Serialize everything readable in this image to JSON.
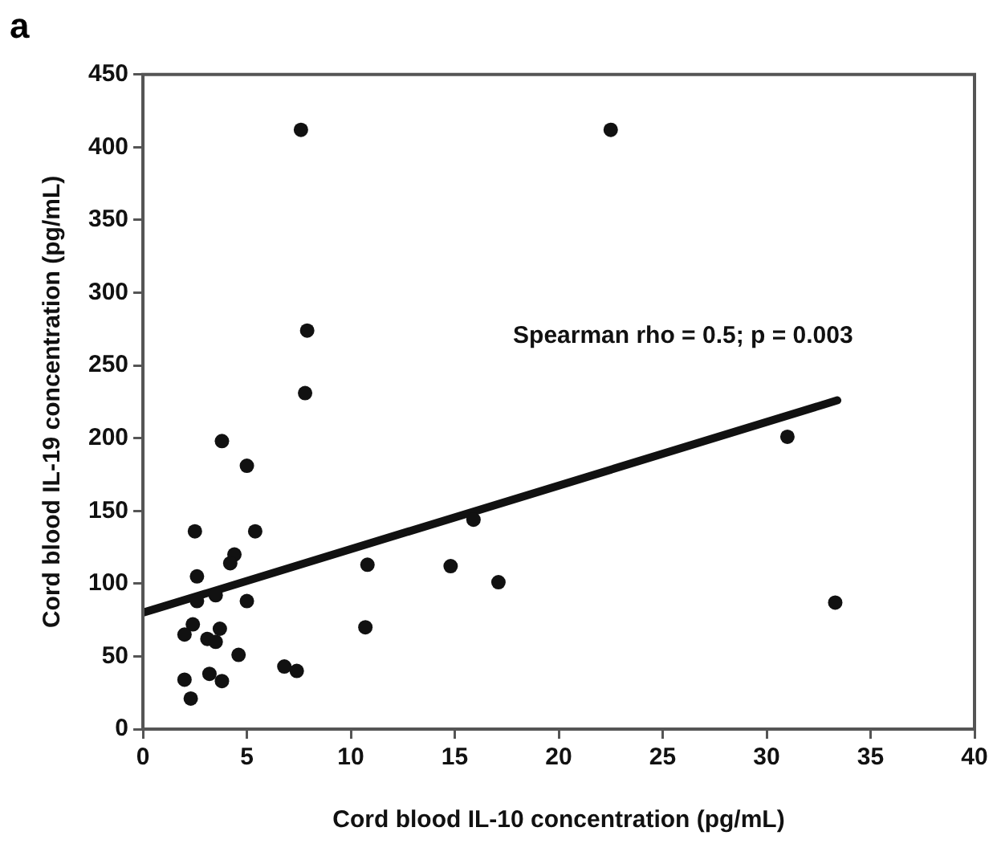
{
  "chart_data": {
    "type": "scatter",
    "title": "a",
    "xlabel": "Cord blood IL-10 concentration (pg/mL)",
    "ylabel": "Cord blood IL-19 concentration (pg/mL)",
    "annotations": [
      "Spearman rho = 0.5; p = 0.003"
    ],
    "xlim": [
      0,
      40
    ],
    "xticks": [
      0,
      5,
      10,
      15,
      20,
      25,
      30,
      35,
      40
    ],
    "ylim": [
      0,
      450
    ],
    "yticks": [
      0,
      50,
      100,
      150,
      200,
      250,
      300,
      350,
      400,
      450
    ],
    "grid": false,
    "legend": false,
    "marker": "circle",
    "series": [
      {
        "color": "#111111",
        "x": [
          7.6,
          7.9,
          7.8,
          3.8,
          5.0,
          2.5,
          5.4,
          4.4,
          4.2,
          2.6,
          3.5,
          2.6,
          5.0,
          2.4,
          2.0,
          3.1,
          3.5,
          3.7,
          4.6,
          2.0,
          3.2,
          3.8,
          2.3,
          6.8,
          7.4,
          10.7,
          10.8,
          14.8,
          15.9,
          17.1,
          22.5,
          31.0,
          33.3
        ],
        "values": [
          412,
          274,
          231,
          198,
          181,
          136,
          136,
          120,
          114,
          105,
          92,
          88,
          88,
          72,
          65,
          62,
          60,
          69,
          51,
          34,
          38,
          33,
          21,
          43,
          40,
          70,
          113,
          112,
          144,
          101,
          412,
          201,
          87
        ]
      },
      {
        "type": "line",
        "color": "#111111",
        "x": [
          0,
          33.4
        ],
        "values": [
          80,
          226
        ],
        "line_style": "solid",
        "marker": "none"
      }
    ]
  }
}
